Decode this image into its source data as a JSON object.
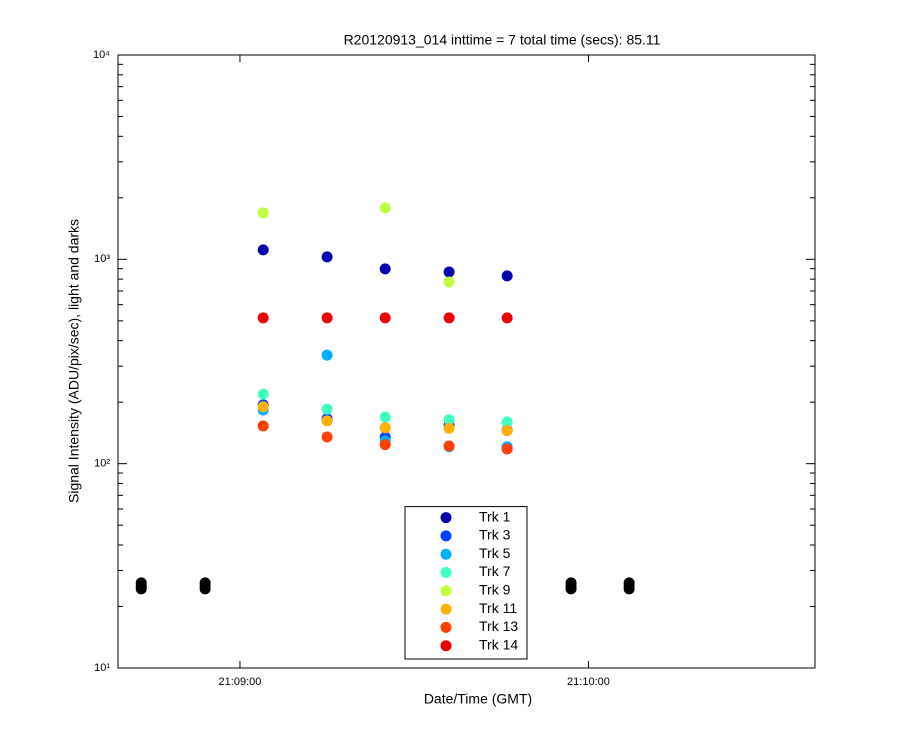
{
  "chart_data": {
    "type": "scatter",
    "title": "R20120913_014 inttime = 7 total time (secs): 85.11",
    "x_label": "Date/Time (GMT)",
    "y_label": "Signal Intensity (ADU/pix/sec), light and darks",
    "log_y": true,
    "xlim": [
      "21:08:39",
      "21:10:39"
    ],
    "xticks": [
      "21:09:00",
      "21:10:00"
    ],
    "ylim": [
      10,
      10000
    ],
    "yticks": [
      {
        "value": 10,
        "label": "10¹"
      },
      {
        "value": 100,
        "label": "10²"
      },
      {
        "value": 1000,
        "label": "10³"
      },
      {
        "value": 10000,
        "label": "10⁴"
      }
    ],
    "legend": "bottom",
    "series": [
      {
        "name": "Trk 1",
        "color": "#0000b0",
        "x": [
          "21:09:04",
          "21:09:15",
          "21:09:25",
          "21:09:36",
          "21:09:46"
        ],
        "values": [
          1112,
          1028,
          898,
          867,
          830
        ]
      },
      {
        "name": "Trk 3",
        "color": "#0040ff",
        "x": [
          "21:09:04",
          "21:09:15",
          "21:09:25",
          "21:09:36",
          "21:09:46"
        ],
        "values": [
          194,
          166,
          135,
          155,
          146
        ]
      },
      {
        "name": "Trk 5",
        "color": "#00b0ff",
        "x": [
          "21:09:04",
          "21:09:15",
          "21:09:25",
          "21:09:36",
          "21:09:46"
        ],
        "values": [
          183,
          340,
          129,
          121,
          121
        ]
      },
      {
        "name": "Trk 7",
        "color": "#40ffc0",
        "x": [
          "21:09:04",
          "21:09:15",
          "21:09:25",
          "21:09:36",
          "21:09:46"
        ],
        "values": [
          219,
          185,
          169,
          164,
          160
        ]
      },
      {
        "name": "Trk 9",
        "color": "#c0ff40",
        "x": [
          "21:09:04",
          "21:09:15",
          "21:09:25",
          "21:09:36",
          "21:09:46"
        ],
        "values": [
          1687,
          null,
          1785,
          775,
          null
        ]
      },
      {
        "name": "Trk 11",
        "color": "#ffb000",
        "x": [
          "21:09:04",
          "21:09:15",
          "21:09:25",
          "21:09:36",
          "21:09:46"
        ],
        "values": [
          190,
          162,
          150,
          149,
          145
        ]
      },
      {
        "name": "Trk 13",
        "color": "#ff4000",
        "x": [
          "21:09:04",
          "21:09:15",
          "21:09:25",
          "21:09:36",
          "21:09:46"
        ],
        "values": [
          153,
          135,
          124,
          122,
          118
        ]
      },
      {
        "name": "Trk 14",
        "color": "#f00000",
        "x": [
          "21:09:04",
          "21:09:15",
          "21:09:25",
          "21:09:36",
          "21:09:46"
        ],
        "values": [
          517,
          517,
          517,
          517,
          517
        ]
      },
      {
        "color": "#000000",
        "x": [
          "21:08:43",
          "21:08:43",
          "21:08:43",
          "21:08:54",
          "21:08:54",
          "21:08:54",
          "21:09:57",
          "21:09:57",
          "21:09:57",
          "21:10:07",
          "21:10:07",
          "21:10:07"
        ],
        "values": [
          26.1,
          25.2,
          24.4,
          26.1,
          25.2,
          24.4,
          26.1,
          25.2,
          24.4,
          26.1,
          25.2,
          24.4
        ]
      }
    ]
  }
}
